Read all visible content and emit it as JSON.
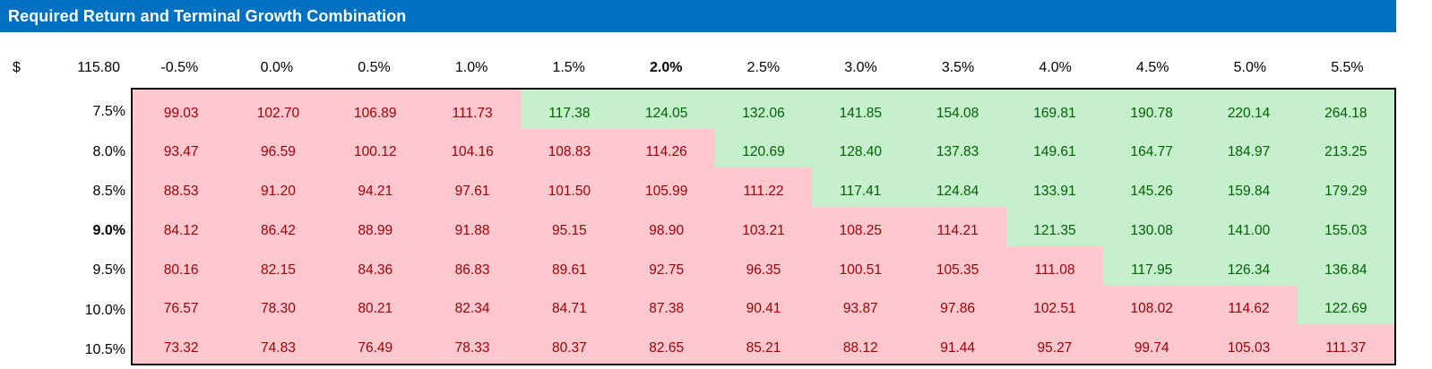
{
  "title_bar": {
    "text": "Required Return and Terminal Growth Combination"
  },
  "header": {
    "currency_symbol": "$",
    "base_price": "115.80",
    "columns": [
      "-0.5%",
      "0.0%",
      "0.5%",
      "1.0%",
      "1.5%",
      "2.0%",
      "2.5%",
      "3.0%",
      "3.5%",
      "4.0%",
      "4.5%",
      "5.0%",
      "5.5%"
    ],
    "bold_column": "2.0%"
  },
  "rows": [
    {
      "label": "7.5%",
      "bold": false,
      "green_from": 4,
      "values": [
        "99.03",
        "102.70",
        "106.89",
        "111.73",
        "117.38",
        "124.05",
        "132.06",
        "141.85",
        "154.08",
        "169.81",
        "190.78",
        "220.14",
        "264.18"
      ]
    },
    {
      "label": "8.0%",
      "bold": false,
      "green_from": 6,
      "values": [
        "93.47",
        "96.59",
        "100.12",
        "104.16",
        "108.83",
        "114.26",
        "120.69",
        "128.40",
        "137.83",
        "149.61",
        "164.77",
        "184.97",
        "213.25"
      ]
    },
    {
      "label": "8.5%",
      "bold": false,
      "green_from": 7,
      "values": [
        "88.53",
        "91.20",
        "94.21",
        "97.61",
        "101.50",
        "105.99",
        "111.22",
        "117.41",
        "124.84",
        "133.91",
        "145.26",
        "159.84",
        "179.29"
      ]
    },
    {
      "label": "9.0%",
      "bold": true,
      "green_from": 9,
      "values": [
        "84.12",
        "86.42",
        "88.99",
        "91.88",
        "95.15",
        "98.90",
        "103.21",
        "108.25",
        "114.21",
        "121.35",
        "130.08",
        "141.00",
        "155.03"
      ]
    },
    {
      "label": "9.5%",
      "bold": false,
      "green_from": 10,
      "values": [
        "80.16",
        "82.15",
        "84.36",
        "86.83",
        "89.61",
        "92.75",
        "96.35",
        "100.51",
        "105.35",
        "111.08",
        "117.95",
        "126.34",
        "136.84"
      ]
    },
    {
      "label": "10.0%",
      "bold": false,
      "green_from": 12,
      "values": [
        "76.57",
        "78.30",
        "80.21",
        "82.34",
        "84.71",
        "87.38",
        "90.41",
        "93.87",
        "97.86",
        "102.51",
        "108.02",
        "114.62",
        "122.69"
      ]
    },
    {
      "label": "10.5%",
      "bold": false,
      "green_from": 13,
      "values": [
        "73.32",
        "74.83",
        "76.49",
        "78.33",
        "80.37",
        "82.65",
        "85.21",
        "88.12",
        "91.44",
        "95.27",
        "99.74",
        "105.03",
        "111.37"
      ]
    }
  ],
  "colors": {
    "title_bg": "#0070C0",
    "title_fg": "#FFFFFF",
    "red_bg": "#FFC7CE",
    "red_fg": "#9C0006",
    "green_bg": "#C6EFCE",
    "green_fg": "#006100"
  },
  "chart_data": {
    "type": "table",
    "title": "Required Return and Terminal Growth Combination",
    "base_value": 115.8,
    "column_header_pct": [
      -0.5,
      0.0,
      0.5,
      1.0,
      1.5,
      2.0,
      2.5,
      3.0,
      3.5,
      4.0,
      4.5,
      5.0,
      5.5
    ],
    "row_header_pct": [
      7.5,
      8.0,
      8.5,
      9.0,
      9.5,
      10.0,
      10.5
    ],
    "highlighted_column_pct": 2.0,
    "highlighted_row_pct": 9.0,
    "values": [
      [
        99.03,
        102.7,
        106.89,
        111.73,
        117.38,
        124.05,
        132.06,
        141.85,
        154.08,
        169.81,
        190.78,
        220.14,
        264.18
      ],
      [
        93.47,
        96.59,
        100.12,
        104.16,
        108.83,
        114.26,
        120.69,
        128.4,
        137.83,
        149.61,
        164.77,
        184.97,
        213.25
      ],
      [
        88.53,
        91.2,
        94.21,
        97.61,
        101.5,
        105.99,
        111.22,
        117.41,
        124.84,
        133.91,
        145.26,
        159.84,
        179.29
      ],
      [
        84.12,
        86.42,
        88.99,
        91.88,
        95.15,
        98.9,
        103.21,
        108.25,
        114.21,
        121.35,
        130.08,
        141.0,
        155.03
      ],
      [
        80.16,
        82.15,
        84.36,
        86.83,
        89.61,
        92.75,
        96.35,
        100.51,
        105.35,
        111.08,
        117.95,
        126.34,
        136.84
      ],
      [
        76.57,
        78.3,
        80.21,
        82.34,
        84.71,
        87.38,
        90.41,
        93.87,
        97.86,
        102.51,
        108.02,
        114.62,
        122.69
      ],
      [
        73.32,
        74.83,
        76.49,
        78.33,
        80.37,
        82.65,
        85.21,
        88.12,
        91.44,
        95.27,
        99.74,
        105.03,
        111.37
      ]
    ],
    "highlight_rule": "cell shaded green if value > 115.80, otherwise red/pink"
  }
}
